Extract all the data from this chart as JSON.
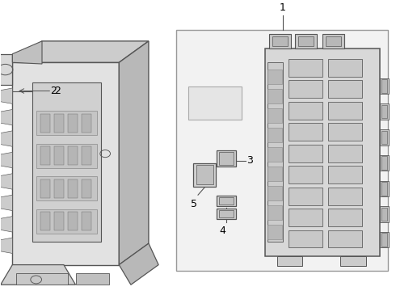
{
  "background_color": "#ffffff",
  "line_color": "#555555",
  "label_color": "#000000",
  "fig_width": 4.9,
  "fig_height": 3.6,
  "dpi": 100
}
